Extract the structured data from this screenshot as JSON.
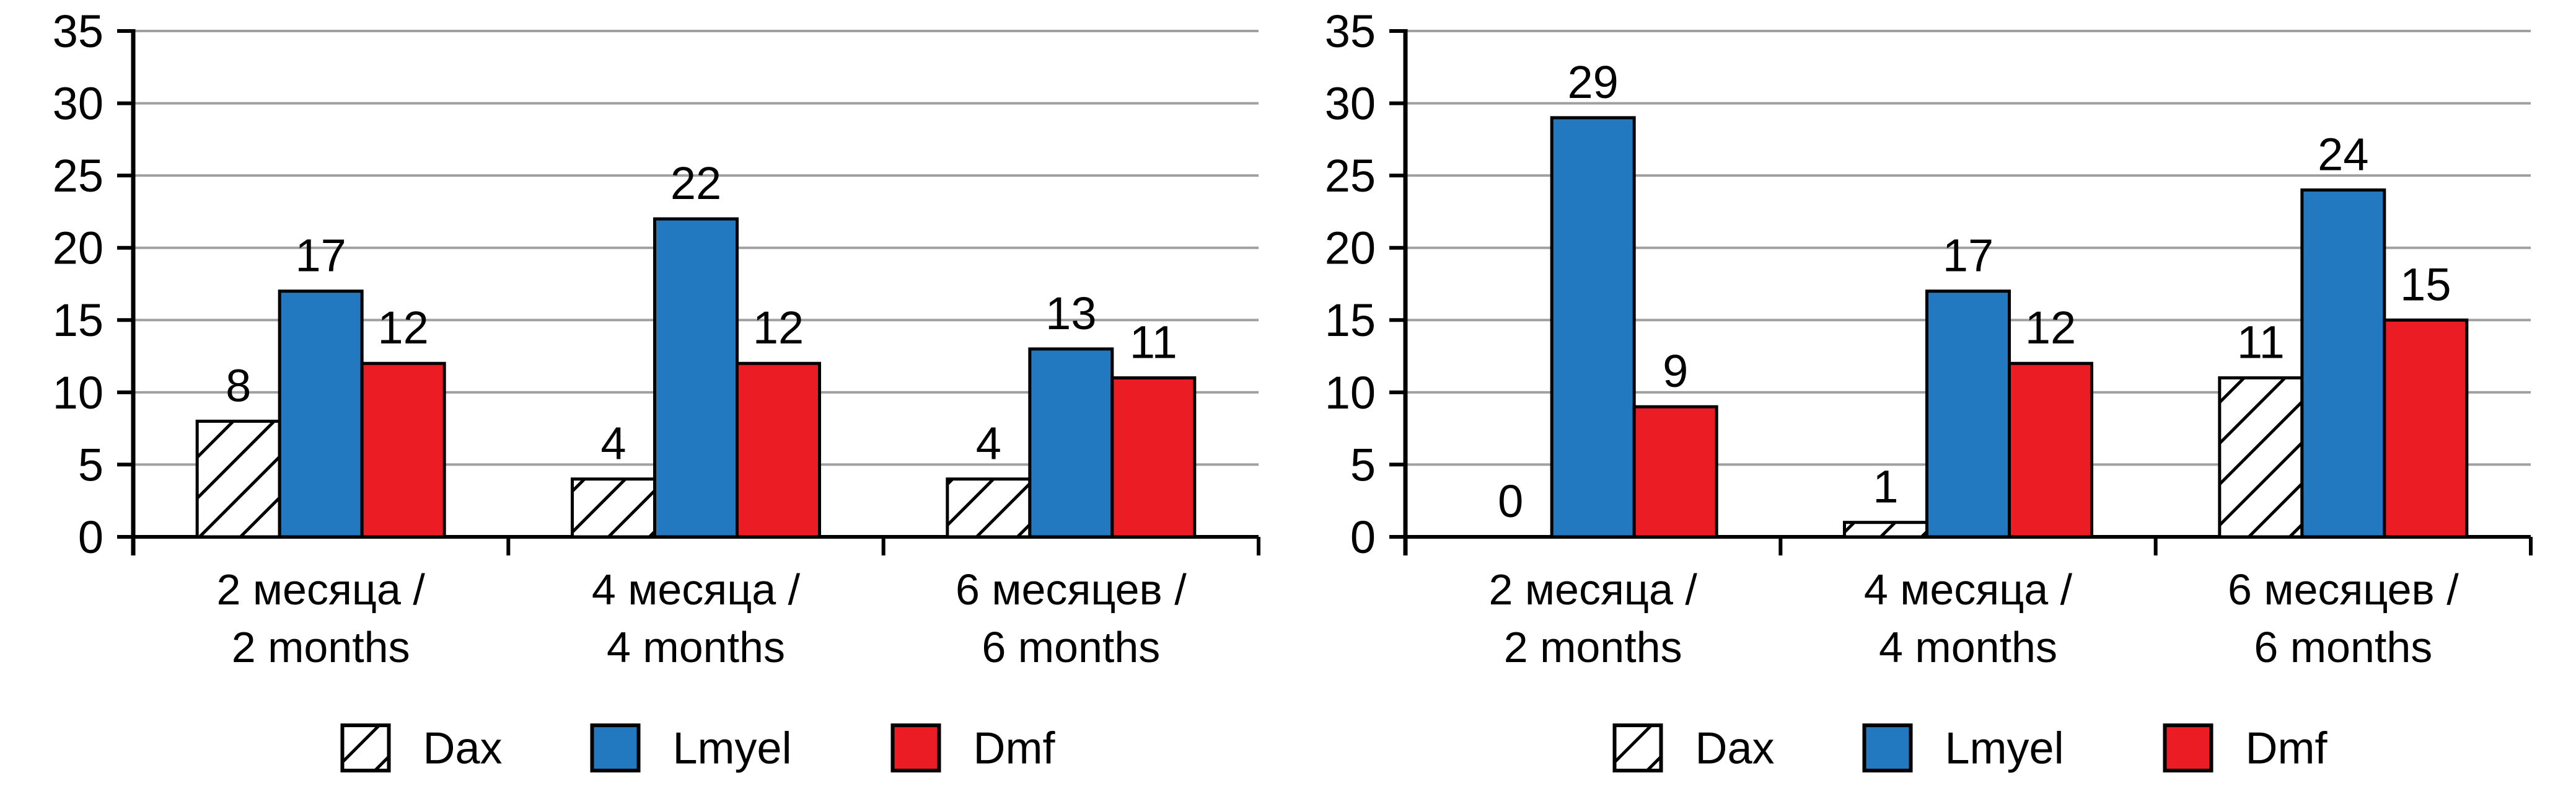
{
  "figure": {
    "background": "#FFFFFF"
  },
  "style_colors": {
    "gridline": "#A0A0A0",
    "axis": "#000000",
    "text": "#000000",
    "bar_outline": "#000000",
    "hatch_fill_bg": "#FFFFFF"
  },
  "chart_data": [
    {
      "type": "bar",
      "title": "",
      "xlabel": "",
      "ylabel": "",
      "ylim": [
        0,
        35
      ],
      "ytick_step": 5,
      "yticks": [
        0,
        5,
        10,
        15,
        20,
        25,
        30,
        35
      ],
      "grid": true,
      "legend_position": "bottom",
      "categories": [
        [
          "2 месяца /",
          "2 months"
        ],
        [
          "4 месяца /",
          "4 months"
        ],
        [
          "6 месяцев /",
          "6 months"
        ]
      ],
      "series": [
        {
          "name": "Dax",
          "pattern": "diagonal-hatch",
          "color": "#FFFFFF",
          "values": [
            8,
            4,
            4
          ]
        },
        {
          "name": "Lmyel",
          "pattern": "solid",
          "color": "#2379BF",
          "values": [
            17,
            22,
            13
          ]
        },
        {
          "name": "Dmf",
          "pattern": "solid",
          "color": "#EC1C24",
          "values": [
            12,
            12,
            11
          ]
        }
      ]
    },
    {
      "type": "bar",
      "title": "",
      "xlabel": "",
      "ylabel": "",
      "ylim": [
        0,
        35
      ],
      "ytick_step": 5,
      "yticks": [
        0,
        5,
        10,
        15,
        20,
        25,
        30,
        35
      ],
      "grid": true,
      "legend_position": "bottom",
      "categories": [
        [
          "2 месяца /",
          "2 months"
        ],
        [
          "4 месяца /",
          "4 months"
        ],
        [
          "6 месяцев /",
          "6 months"
        ]
      ],
      "series": [
        {
          "name": "Dax",
          "pattern": "diagonal-hatch",
          "color": "#FFFFFF",
          "values": [
            0,
            1,
            11
          ]
        },
        {
          "name": "Lmyel",
          "pattern": "solid",
          "color": "#2379BF",
          "values": [
            29,
            17,
            24
          ]
        },
        {
          "name": "Dmf",
          "pattern": "solid",
          "color": "#EC1C24",
          "values": [
            9,
            12,
            15
          ]
        }
      ]
    }
  ]
}
